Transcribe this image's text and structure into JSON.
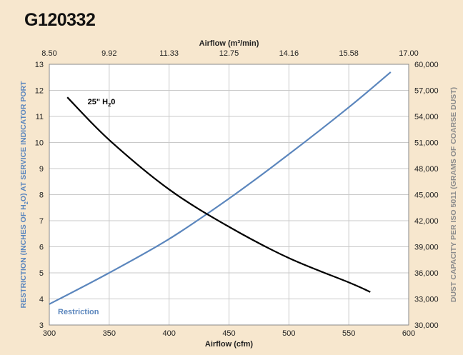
{
  "title": "G120332",
  "colors": {
    "background": "#f7e7ce",
    "plot_background": "#ffffff",
    "grid": "#c9c9c9",
    "restriction": "#5b86bd",
    "dust_capacity": "#000000",
    "left_axis_title": "#5b86bd",
    "right_axis_title": "#8c8c8c"
  },
  "chart_data": {
    "type": "line",
    "title": "G120332",
    "grid": true,
    "x_bottom": {
      "label": "Airflow (cfm)",
      "range": [
        300,
        600
      ],
      "ticks": [
        "300",
        "350",
        "400",
        "450",
        "500",
        "550",
        "600"
      ]
    },
    "x_top": {
      "label": "Airflow (m³/min)",
      "range": [
        8.5,
        17.0
      ],
      "ticks": [
        "8.50",
        "9.92",
        "11.33",
        "12.75",
        "14.16",
        "15.58",
        "17.00"
      ]
    },
    "y_left": {
      "label_parts": [
        "RESTRICTION (INCHES OF H",
        "2",
        "O) AT SERVICE INDICATOR PORT"
      ],
      "range": [
        3,
        13
      ],
      "ticks": [
        "3",
        "4",
        "5",
        "6",
        "7",
        "8",
        "9",
        "10",
        "11",
        "12",
        "13"
      ]
    },
    "y_right": {
      "label": "DUST CAPACITY PER ISO 5011 (GRAMS OF COARSE DUST)",
      "range": [
        30000,
        60000
      ],
      "ticks": [
        "30,000",
        "33,000",
        "36,000",
        "39,000",
        "42,000",
        "45,000",
        "48,000",
        "51,000",
        "54,000",
        "57,000",
        "60,000"
      ]
    },
    "series": [
      {
        "name": "Restriction",
        "axis": "left",
        "x": [
          300,
          350,
          400,
          450,
          500,
          550,
          585
        ],
        "y": [
          3.8,
          5.0,
          6.3,
          7.85,
          9.55,
          11.35,
          12.7
        ]
      },
      {
        "name": "25\" H2O",
        "label_parts": [
          "25\" H",
          "2",
          "0"
        ],
        "axis": "right",
        "x": [
          315,
          350,
          400,
          450,
          500,
          550,
          568
        ],
        "y": [
          56200,
          51300,
          45600,
          41300,
          37700,
          34900,
          33800
        ]
      }
    ]
  }
}
